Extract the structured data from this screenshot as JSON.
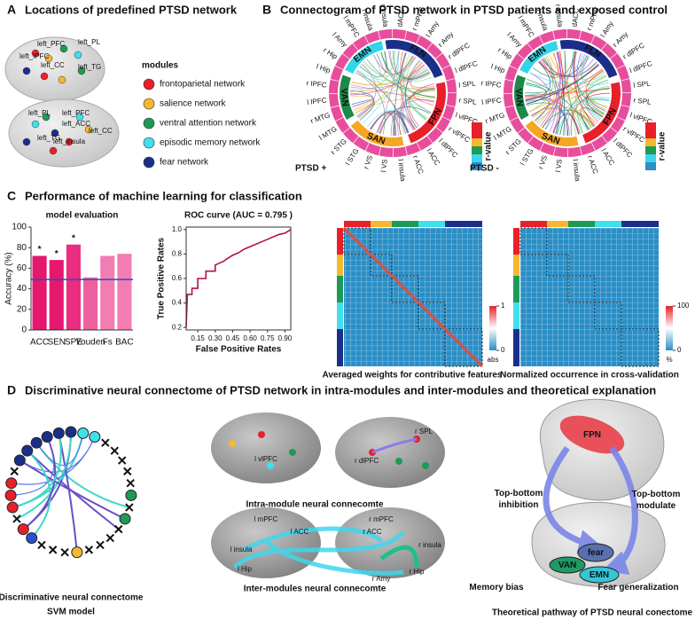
{
  "panels": {
    "A": {
      "letter": "A",
      "title": "Locations of predefined PTSD network",
      "brain_labels": [
        "left_PFC",
        "left_PL",
        "left_IPFC",
        "left_CC",
        "left_TG",
        "left_PL",
        "left_PFC",
        "left_ACC",
        "left_CC",
        "left_TG",
        "left_insula"
      ],
      "legend_title": "modules",
      "modules": [
        {
          "name": "frontoparietal network",
          "color": "#e8202a"
        },
        {
          "name": "salience network",
          "color": "#f5b82e"
        },
        {
          "name": "ventral attention network",
          "color": "#1e9a55"
        },
        {
          "name": "episodic memory network",
          "color": "#3fe0ec"
        },
        {
          "name": "fear network",
          "color": "#1a2f8a"
        }
      ]
    },
    "B": {
      "letter": "B",
      "title": "Connectogram of PTSD network in PTSD patients and exposed control",
      "groups": [
        "PTSD +",
        "PTSD -"
      ],
      "node_labels": [
        "dACC",
        "r mPFC",
        "l Amy",
        "r Amy",
        "r dlPFC",
        "l dlPFC",
        "l SPL",
        "r SPL",
        "l vlPFC",
        "r vlPFC",
        "l dlPFC",
        "l ACC",
        "r ACC",
        "l insula",
        "l VS",
        "r VS",
        "l STG",
        "r STG",
        "l MTG",
        "r MTG",
        "l IPFC",
        "r IPFC",
        "l Hip",
        "r Hip",
        "l Amy",
        "l mPFC",
        "l insula",
        "r insula"
      ],
      "modules": [
        {
          "name": "FLN",
          "color": "#1a2f8a"
        },
        {
          "name": "FPN",
          "color": "#e8202a"
        },
        {
          "name": "SAN",
          "color": "#f5a623"
        },
        {
          "name": "VAN",
          "color": "#1e8a4a"
        },
        {
          "name": "EMN",
          "color": "#33d6e8"
        }
      ],
      "colorbar_label": "r-value"
    },
    "C": {
      "letter": "C",
      "title": "Performance of machine learning for classification",
      "heatmaps": [
        {
          "caption": "Averaged weights for contributive features",
          "colorbar_ticks": [
            0,
            1
          ],
          "colorbar_unit": "abs"
        },
        {
          "caption": "Normalized occurrence in cross-validation",
          "colorbar_ticks": [
            0,
            100
          ],
          "colorbar_unit": "%"
        }
      ]
    },
    "D": {
      "letter": "D",
      "title": "Discriminative neural connectome of PTSD network in intra-modules and inter-modules and theoretical explanation",
      "svm_caption": [
        "Discriminative neural connectome",
        "SVM model"
      ],
      "intra_labels": [
        "l vlPFC",
        "r dlPFC",
        "r SPL"
      ],
      "intra_caption": "Intra-module neural connecomte",
      "inter_labels": [
        "l mPFC",
        "l ACC",
        "r mPFC",
        "r ACC",
        "l insula",
        "r insula",
        "l Hip",
        "r Amy",
        "r Hip"
      ],
      "inter_caption": "Inter-modules neural connecomte",
      "pathway_labels": [
        "FPN",
        "Top-bottom\ninhibition",
        "Top-bottom\nmodulate",
        "fear",
        "VAN",
        "EMN",
        "Memory bias",
        "Fear  generalization"
      ],
      "pathway_caption": "Theoretical pathway of PTSD neural conectome"
    }
  },
  "chart_data": [
    {
      "type": "bar",
      "title": "model evaluation",
      "y_label": "Accuracy (%)",
      "categories": [
        "ACC",
        "SEN",
        "SPE",
        "Youden",
        "Fs",
        "BAC"
      ],
      "values": [
        72,
        68,
        83,
        51,
        72,
        74
      ],
      "colors": [
        "#e5176f",
        "#e5176f",
        "#ea2d80",
        "#ee5fa0",
        "#f27db2",
        "#f27db2"
      ],
      "annotations": [
        "*",
        "*",
        "*",
        null,
        null,
        null
      ],
      "reference_line": 49,
      "reference_color": "#2b4fb8",
      "ylim": [
        0,
        100
      ],
      "yticks": [
        0,
        20,
        40,
        60,
        80,
        100
      ]
    },
    {
      "type": "line",
      "title": "ROC curve (AUC = 0.795 )",
      "x_label": "False Positive Rates",
      "y_label": "True Positive Rates",
      "color": "#b0124f",
      "x": [
        0.05,
        0.06,
        0.1,
        0.1,
        0.15,
        0.15,
        0.22,
        0.22,
        0.3,
        0.3,
        0.37,
        0.4,
        0.45,
        0.5,
        0.55,
        0.6,
        0.65,
        0.7,
        0.75,
        0.8,
        0.85,
        0.9,
        0.95
      ],
      "values": [
        0.2,
        0.47,
        0.47,
        0.52,
        0.52,
        0.6,
        0.6,
        0.66,
        0.66,
        0.71,
        0.74,
        0.76,
        0.79,
        0.81,
        0.84,
        0.86,
        0.88,
        0.9,
        0.92,
        0.94,
        0.96,
        0.97,
        1.0
      ],
      "xlim": [
        0.05,
        0.95
      ],
      "ylim": [
        0.18,
        1.02
      ],
      "xticks": [
        0.15,
        {
          "value": 0.3,
          "label": "0.30"
        },
        0.45,
        {
          "value": 0.6,
          "label": "0.60"
        },
        0.75,
        {
          "value": 0.9,
          "label": "0.90"
        }
      ],
      "yticks": [
        0.2,
        0.4,
        0.6,
        0.8,
        {
          "value": 1.0,
          "label": "1.0"
        }
      ]
    }
  ]
}
